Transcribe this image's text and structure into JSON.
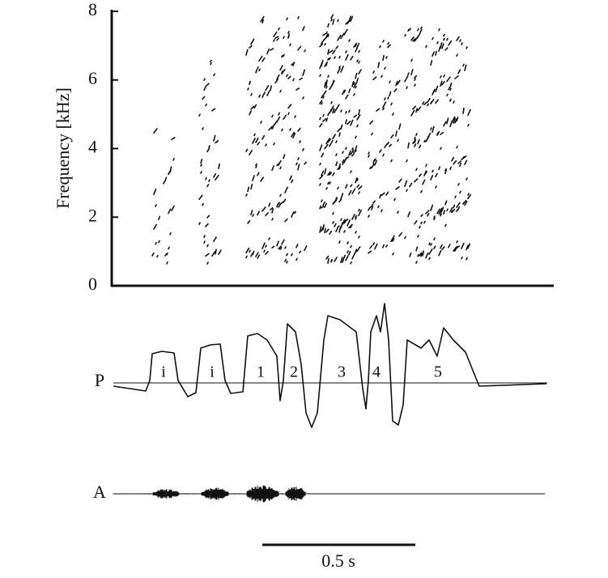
{
  "chart_data": {
    "type": "spectrogram",
    "ylabel": "Frequency [kHz]",
    "ylim": [
      0,
      8
    ],
    "yticks": [
      0,
      2,
      4,
      6,
      8
    ]
  },
  "traces": {
    "pressure_label": "P",
    "amplitude_label": "A",
    "syllables": [
      "i",
      "i",
      "1",
      "2",
      "3",
      "4",
      "5"
    ],
    "scale_bar": "0.5 s"
  }
}
